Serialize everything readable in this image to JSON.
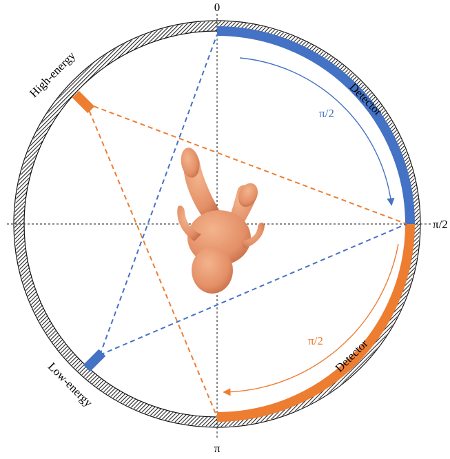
{
  "axis_labels": {
    "top": "0",
    "right": "π/2",
    "bottom": "π"
  },
  "sources": {
    "high_energy": {
      "label": "High-energy",
      "color": "#ED7D31"
    },
    "low_energy": {
      "label": "Low-energy",
      "color": "#4472C4"
    }
  },
  "detectors": {
    "blue": {
      "label": "Detector",
      "arc_label": "π/2",
      "color": "#4472C4"
    },
    "orange": {
      "label": "Detector",
      "arc_label": "π/2",
      "color": "#ED7D31"
    }
  },
  "phantom": {
    "icon": "human-figure-icon"
  }
}
